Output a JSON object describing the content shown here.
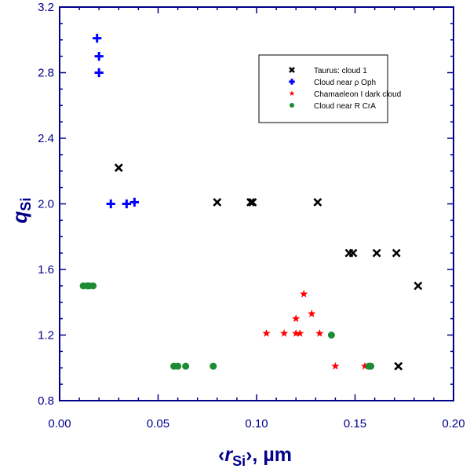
{
  "chart_data": {
    "type": "scatter",
    "title": "",
    "xlabel": {
      "pre": "‹",
      "sym": "r",
      "sub": "Si",
      "post": "›, µm"
    },
    "ylabel": {
      "sym": "q",
      "sub": "Si"
    },
    "xlim": [
      0.0,
      0.2
    ],
    "ylim": [
      0.8,
      3.2
    ],
    "x_ticks": [
      0.0,
      0.05,
      0.1,
      0.15,
      0.2
    ],
    "x_tick_labels": [
      "0.00",
      "0.05",
      "0.10",
      "0.15",
      "0.20"
    ],
    "y_ticks": [
      0.8,
      1.2,
      1.6,
      2.0,
      2.4,
      2.8,
      3.2
    ],
    "y_tick_labels": [
      "0.8",
      "1.2",
      "1.6",
      "2.0",
      "2.4",
      "2.8",
      "3.2"
    ],
    "grid": false,
    "legend_position": "top-right",
    "series": [
      {
        "name": "Taurus: cloud 1",
        "marker": "x",
        "color": "#000000",
        "points": [
          [
            0.03,
            2.22
          ],
          [
            0.08,
            2.01
          ],
          [
            0.097,
            2.01
          ],
          [
            0.098,
            2.01
          ],
          [
            0.131,
            2.01
          ],
          [
            0.147,
            1.7
          ],
          [
            0.149,
            1.7
          ],
          [
            0.161,
            1.7
          ],
          [
            0.171,
            1.7
          ],
          [
            0.182,
            1.5
          ],
          [
            0.172,
            1.01
          ]
        ]
      },
      {
        "name": "Cloud near ρ Oph",
        "marker": "plus",
        "color": "#0000ff",
        "points": [
          [
            0.019,
            3.01
          ],
          [
            0.02,
            2.9
          ],
          [
            0.02,
            2.8
          ],
          [
            0.026,
            2.0
          ],
          [
            0.034,
            2.0
          ],
          [
            0.038,
            2.01
          ]
        ]
      },
      {
        "name": "Chamaeleon I dark cloud",
        "marker": "star",
        "color": "#ff0000",
        "points": [
          [
            0.124,
            1.45
          ],
          [
            0.128,
            1.33
          ],
          [
            0.12,
            1.3
          ],
          [
            0.105,
            1.21
          ],
          [
            0.114,
            1.21
          ],
          [
            0.12,
            1.21
          ],
          [
            0.122,
            1.21
          ],
          [
            0.132,
            1.21
          ],
          [
            0.14,
            1.01
          ],
          [
            0.155,
            1.01
          ]
        ]
      },
      {
        "name": "Cloud near R CrA",
        "marker": "circle",
        "color": "#1e8c32",
        "points": [
          [
            0.012,
            1.5
          ],
          [
            0.014,
            1.5
          ],
          [
            0.015,
            1.5
          ],
          [
            0.017,
            1.5
          ],
          [
            0.058,
            1.01
          ],
          [
            0.06,
            1.01
          ],
          [
            0.064,
            1.01
          ],
          [
            0.078,
            1.01
          ],
          [
            0.138,
            1.2
          ],
          [
            0.157,
            1.01
          ],
          [
            0.158,
            1.01
          ]
        ]
      }
    ]
  }
}
